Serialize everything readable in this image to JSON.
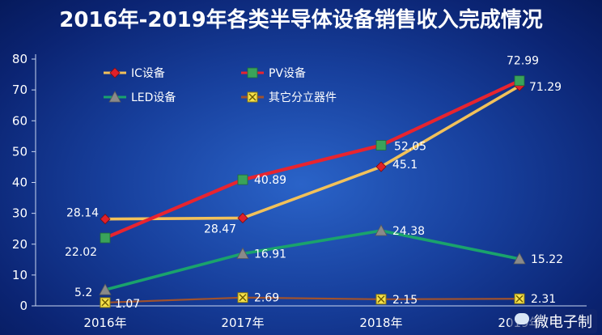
{
  "title": "2016年-2019年各类半导体设备销售收入完成情况",
  "watermark": "微电子制",
  "chart_data": {
    "type": "line",
    "title": "2016年-2019年各类半导体设备销售收入完成情况",
    "categories": [
      "2016年",
      "2017年",
      "2018年",
      "2019年"
    ],
    "ylim": [
      0,
      80
    ],
    "yticks": [
      0,
      10,
      20,
      30,
      40,
      50,
      60,
      70,
      80
    ],
    "grid": false,
    "legend_position": "top-left",
    "series": [
      {
        "name": "IC设备",
        "values": [
          28.14,
          28.47,
          45.1,
          71.29
        ],
        "labels": [
          "28.14",
          "28.47",
          "45.1",
          "71.29"
        ],
        "color": "#f2c15a",
        "marker": "diamond",
        "marker_color": "#e0202a"
      },
      {
        "name": "PV设备",
        "values": [
          22.02,
          40.89,
          52.05,
          72.99
        ],
        "labels": [
          "22.02",
          "40.89",
          "52.05",
          "72.99"
        ],
        "color": "#e8242f",
        "marker": "square",
        "marker_color": "#3aa35a"
      },
      {
        "name": "LED设备",
        "values": [
          5.2,
          16.91,
          24.38,
          15.22
        ],
        "labels": [
          "5.2",
          "16.91",
          "24.38",
          "15.22"
        ],
        "color": "#1aa36c",
        "marker": "triangle",
        "marker_color": "#8a8a8a"
      },
      {
        "name": "其它分立器件",
        "values": [
          1.07,
          2.69,
          2.15,
          2.31
        ],
        "labels": [
          "1.07",
          "2.69",
          "2.15",
          "2.31"
        ],
        "color": "#a0522d",
        "marker": "xsquare",
        "marker_color": "#f5e04a"
      }
    ]
  }
}
